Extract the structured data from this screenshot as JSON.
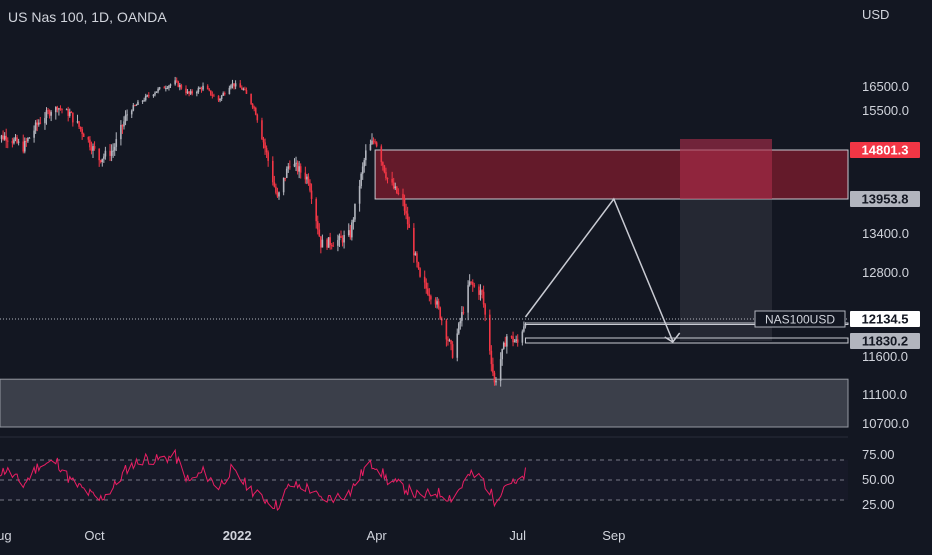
{
  "header": {
    "title": "US Nas 100, 1D, OANDA"
  },
  "colors": {
    "background": "#131722",
    "bull": "#b2b5be",
    "bear": "#f23645",
    "rsi": "#e91e63",
    "zone_red": "#801c2e",
    "zone_grey": "#4a4d58",
    "label_red": "#f23645",
    "label_grey": "#b2b5be",
    "axis_text": "#d1d4dc"
  },
  "chart_data": [
    {
      "type": "candlestick",
      "title": "US Nas 100, 1D, OANDA",
      "y_unit": "USD",
      "y_ticks": [
        "16500.0",
        "15500.0",
        "13400.0",
        "12800.0",
        "11600.0",
        "11100.0",
        "10700.0"
      ],
      "x_ticks": [
        "Aug",
        "Oct",
        "2022",
        "Apr",
        "Jul",
        "Sep"
      ],
      "price_path": [
        [
          "2021-07-27",
          15000
        ],
        [
          "2021-08-05",
          15050
        ],
        [
          "2021-08-16",
          14850
        ],
        [
          "2021-08-26",
          15300
        ],
        [
          "2021-09-07",
          15650
        ],
        [
          "2021-09-15",
          15450
        ],
        [
          "2021-09-24",
          15100
        ],
        [
          "2021-10-04",
          14650
        ],
        [
          "2021-10-13",
          14800
        ],
        [
          "2021-10-22",
          15450
        ],
        [
          "2021-11-03",
          16050
        ],
        [
          "2021-11-10",
          16350
        ],
        [
          "2021-11-22",
          16700
        ],
        [
          "2021-12-01",
          16200
        ],
        [
          "2021-12-10",
          16500
        ],
        [
          "2021-12-20",
          15950
        ],
        [
          "2021-12-28",
          16650
        ],
        [
          "2022-01-05",
          16400
        ],
        [
          "2022-01-14",
          15400
        ],
        [
          "2022-01-27",
          13950
        ],
        [
          "2022-02-04",
          14600
        ],
        [
          "2022-02-16",
          14300
        ],
        [
          "2022-02-24",
          13250
        ],
        [
          "2022-03-08",
          13300
        ],
        [
          "2022-03-15",
          13400
        ],
        [
          "2022-03-25",
          14750
        ],
        [
          "2022-03-31",
          15000
        ],
        [
          "2022-04-08",
          14300
        ],
        [
          "2022-04-18",
          13900
        ],
        [
          "2022-04-29",
          12700
        ],
        [
          "2022-05-09",
          12400
        ],
        [
          "2022-05-20",
          11650
        ],
        [
          "2022-05-31",
          12650
        ],
        [
          "2022-06-08",
          12500
        ],
        [
          "2022-06-16",
          11250
        ],
        [
          "2022-06-24",
          11900
        ],
        [
          "2022-07-01",
          11800
        ],
        [
          "2022-07-06",
          12134.5
        ]
      ],
      "price_labels": {
        "zone_top": "14801.3",
        "zone_bottom": "13953.8",
        "symbol": "NAS100USD",
        "last": "12134.5",
        "target": "11830.2"
      },
      "annotations": {
        "supply_zone": {
          "price_top": 14801.3,
          "price_bottom": 13953.8,
          "from": "2022-03-31"
        },
        "demand_zone": {
          "price_top": 11150,
          "price_bottom": 10700
        },
        "projection_path": [
          [
            "2022-07-06",
            12134.5
          ],
          [
            "2022-09-01",
            13953.8
          ],
          [
            "2022-10-09",
            11830.2
          ]
        ],
        "last_price_line": 12134.5,
        "target_line": 11830.2
      }
    },
    {
      "type": "line",
      "name": "RSI",
      "y_ticks": [
        "75.00",
        "50.00",
        "25.00"
      ],
      "levels": [
        70,
        50,
        30
      ],
      "rsi_path": [
        [
          "2021-07-27",
          55
        ],
        [
          "2021-08-05",
          60
        ],
        [
          "2021-08-16",
          45
        ],
        [
          "2021-08-26",
          65
        ],
        [
          "2021-09-07",
          68
        ],
        [
          "2021-09-15",
          50
        ],
        [
          "2021-09-24",
          40
        ],
        [
          "2021-10-04",
          30
        ],
        [
          "2021-10-13",
          42
        ],
        [
          "2021-10-22",
          62
        ],
        [
          "2021-11-03",
          72
        ],
        [
          "2021-11-10",
          70
        ],
        [
          "2021-11-22",
          74
        ],
        [
          "2021-12-01",
          48
        ],
        [
          "2021-12-10",
          58
        ],
        [
          "2021-12-20",
          43
        ],
        [
          "2021-12-28",
          60
        ],
        [
          "2022-01-05",
          48
        ],
        [
          "2022-01-14",
          35
        ],
        [
          "2022-01-27",
          24
        ],
        [
          "2022-02-04",
          45
        ],
        [
          "2022-02-16",
          42
        ],
        [
          "2022-02-24",
          30
        ],
        [
          "2022-03-08",
          34
        ],
        [
          "2022-03-15",
          38
        ],
        [
          "2022-03-25",
          63
        ],
        [
          "2022-03-31",
          66
        ],
        [
          "2022-04-08",
          50
        ],
        [
          "2022-04-18",
          43
        ],
        [
          "2022-04-29",
          33
        ],
        [
          "2022-05-09",
          38
        ],
        [
          "2022-05-20",
          32
        ],
        [
          "2022-05-31",
          55
        ],
        [
          "2022-06-08",
          52
        ],
        [
          "2022-06-16",
          30
        ],
        [
          "2022-06-24",
          48
        ],
        [
          "2022-07-01",
          45
        ],
        [
          "2022-07-06",
          57
        ]
      ]
    }
  ]
}
